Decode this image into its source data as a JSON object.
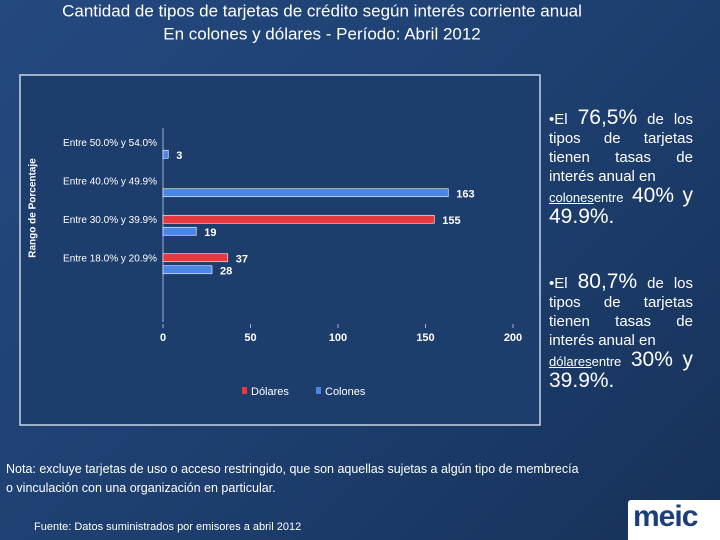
{
  "title": "Cantidad de tipos de tarjetas de crédito según interés corriente anual",
  "subtitle": "En colones y dólares - Período: Abril 2012",
  "chart_data": {
    "type": "bar",
    "orientation": "horizontal",
    "ylabel": "Rango de Porcentaje",
    "categories": [
      "Entre 50.0% y 54.0%",
      "Entre 40.0% y 49.9%",
      "Entre 30.0% y 39.9%",
      "Entre 18.0% y 20.9%"
    ],
    "series": [
      {
        "name": "Dólares",
        "color": "#e8383d",
        "values": [
          null,
          null,
          155,
          37
        ]
      },
      {
        "name": "Colones",
        "color": "#4a86e8",
        "values": [
          3,
          163,
          19,
          28
        ]
      }
    ],
    "xlim": [
      0,
      200
    ],
    "xticks": [
      0,
      50,
      100,
      150,
      200
    ],
    "grid": false,
    "legend": "bottom"
  },
  "side_notes": [
    [
      "•El",
      "76,5%",
      "de los tipos de tarjetas tienen tasas de interés anual en",
      "colones",
      "entre",
      "40%",
      "y 49.9%."
    ],
    [
      "•El",
      "80,7%",
      "de los tipos de tarjetas tienen tasas de interés anual en",
      "dólares",
      "entre",
      "30%",
      "y 39.9%."
    ]
  ],
  "note": "Nota: excluye tarjetas de uso o acceso restringido, que son aquellas sujetas a algún tipo de membrecía o vinculación con una organización en particular.",
  "source": "Fuente: Datos suministrados por emisores  a abril  2012",
  "logo": "meic"
}
